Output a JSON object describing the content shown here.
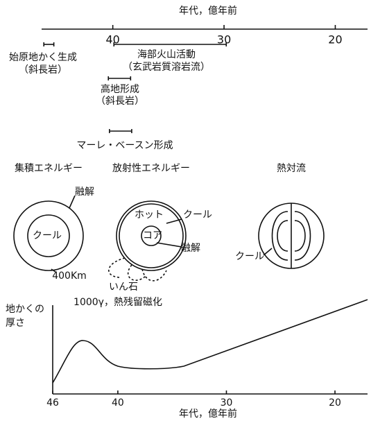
{
  "timeline": {
    "title": "年代，億年前",
    "xlim": [
      46.4,
      17.1
    ],
    "ticks": [
      40,
      30,
      20
    ],
    "events": [
      {
        "label": [
          "始原地かく生成",
          "（斜長岩）"
        ],
        "range": [
          46.2,
          45.3
        ]
      },
      {
        "label": [
          "海部火山活動",
          "（玄武岩質溶岩流）"
        ],
        "range": [
          39.9,
          29.8
        ]
      },
      {
        "label": [
          "高地形成",
          "（斜長岩）"
        ],
        "range": [
          40.4,
          38.4
        ]
      },
      {
        "label": [
          "マーレ・ベースン形成"
        ],
        "range": [
          40.3,
          38.3
        ]
      }
    ]
  },
  "diagrams": [
    {
      "title": "集積エネルギー",
      "labels": [
        "融解",
        "クール",
        "400Km"
      ]
    },
    {
      "title": "放射性エネルギー",
      "labels": [
        "ホット",
        "クール",
        "コア",
        "融解",
        "いん石",
        "1000γ，熱残留磁化"
      ]
    },
    {
      "title": "熱対流",
      "labels": [
        "クール"
      ]
    }
  ],
  "thickness_chart": {
    "y_label": [
      "地かくの",
      "厚さ"
    ],
    "x_label": "年代，億年前",
    "xlim": [
      46,
      17
    ],
    "xticks": [
      46,
      40,
      30,
      20
    ]
  }
}
